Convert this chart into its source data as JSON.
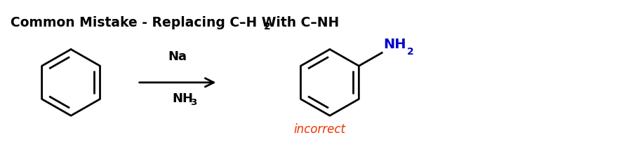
{
  "background_color": "#ffffff",
  "text_color": "#000000",
  "title_main": "Common Mistake - Replacing C–H With C–NH",
  "title_sub": "2",
  "reagent_above": "Na",
  "reagent_below": "NH",
  "reagent_below_sub": "3",
  "nh2_text": "NH",
  "nh2_sub": "2",
  "nh2_color": "#0000cc",
  "incorrect_text": "incorrect",
  "incorrect_color": "#ee3300",
  "lw": 2.0
}
